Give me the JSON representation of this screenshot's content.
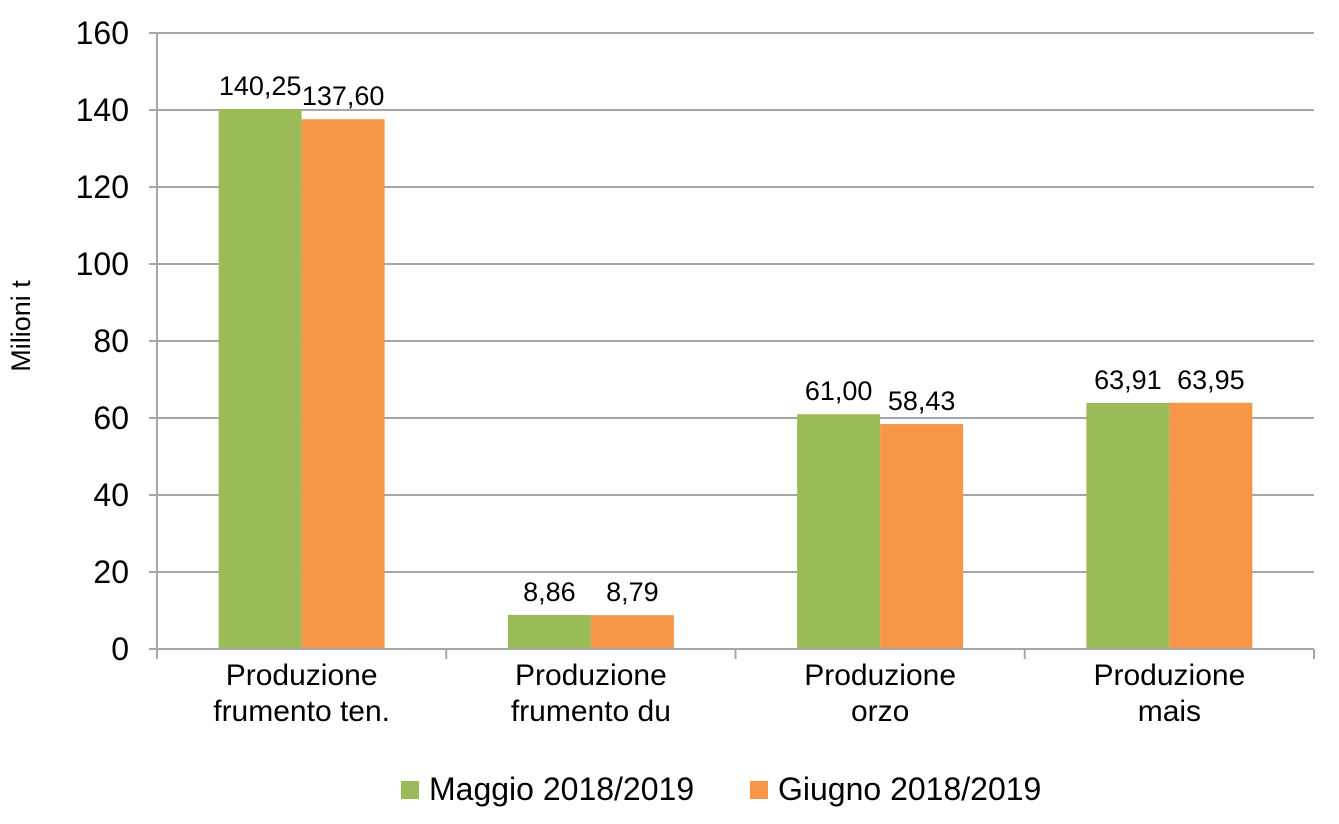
{
  "chart_data": {
    "type": "bar",
    "categories": [
      [
        "Produzione",
        "frumento ten."
      ],
      [
        "Produzione",
        "frumento du"
      ],
      [
        "Produzione",
        "orzo"
      ],
      [
        "Produzione",
        "mais"
      ]
    ],
    "series": [
      {
        "name": "Maggio 2018/2019",
        "values": [
          140.25,
          8.86,
          61.0,
          63.91
        ],
        "labels": [
          "140,25",
          "8,86",
          "61,00",
          "63,91"
        ],
        "color": "#9BBB59"
      },
      {
        "name": "Giugno 2018/2019",
        "values": [
          137.6,
          8.79,
          58.43,
          63.95
        ],
        "labels": [
          "137,60",
          "8,79",
          "58,43",
          "63,95"
        ],
        "color": "#F79646"
      }
    ],
    "title": "",
    "xlabel": "",
    "ylabel": "Milioni t",
    "ylim": [
      0,
      160
    ],
    "yticks": [
      0,
      20,
      40,
      60,
      80,
      100,
      120,
      140,
      160
    ],
    "grid": true,
    "legend_position": "bottom"
  }
}
